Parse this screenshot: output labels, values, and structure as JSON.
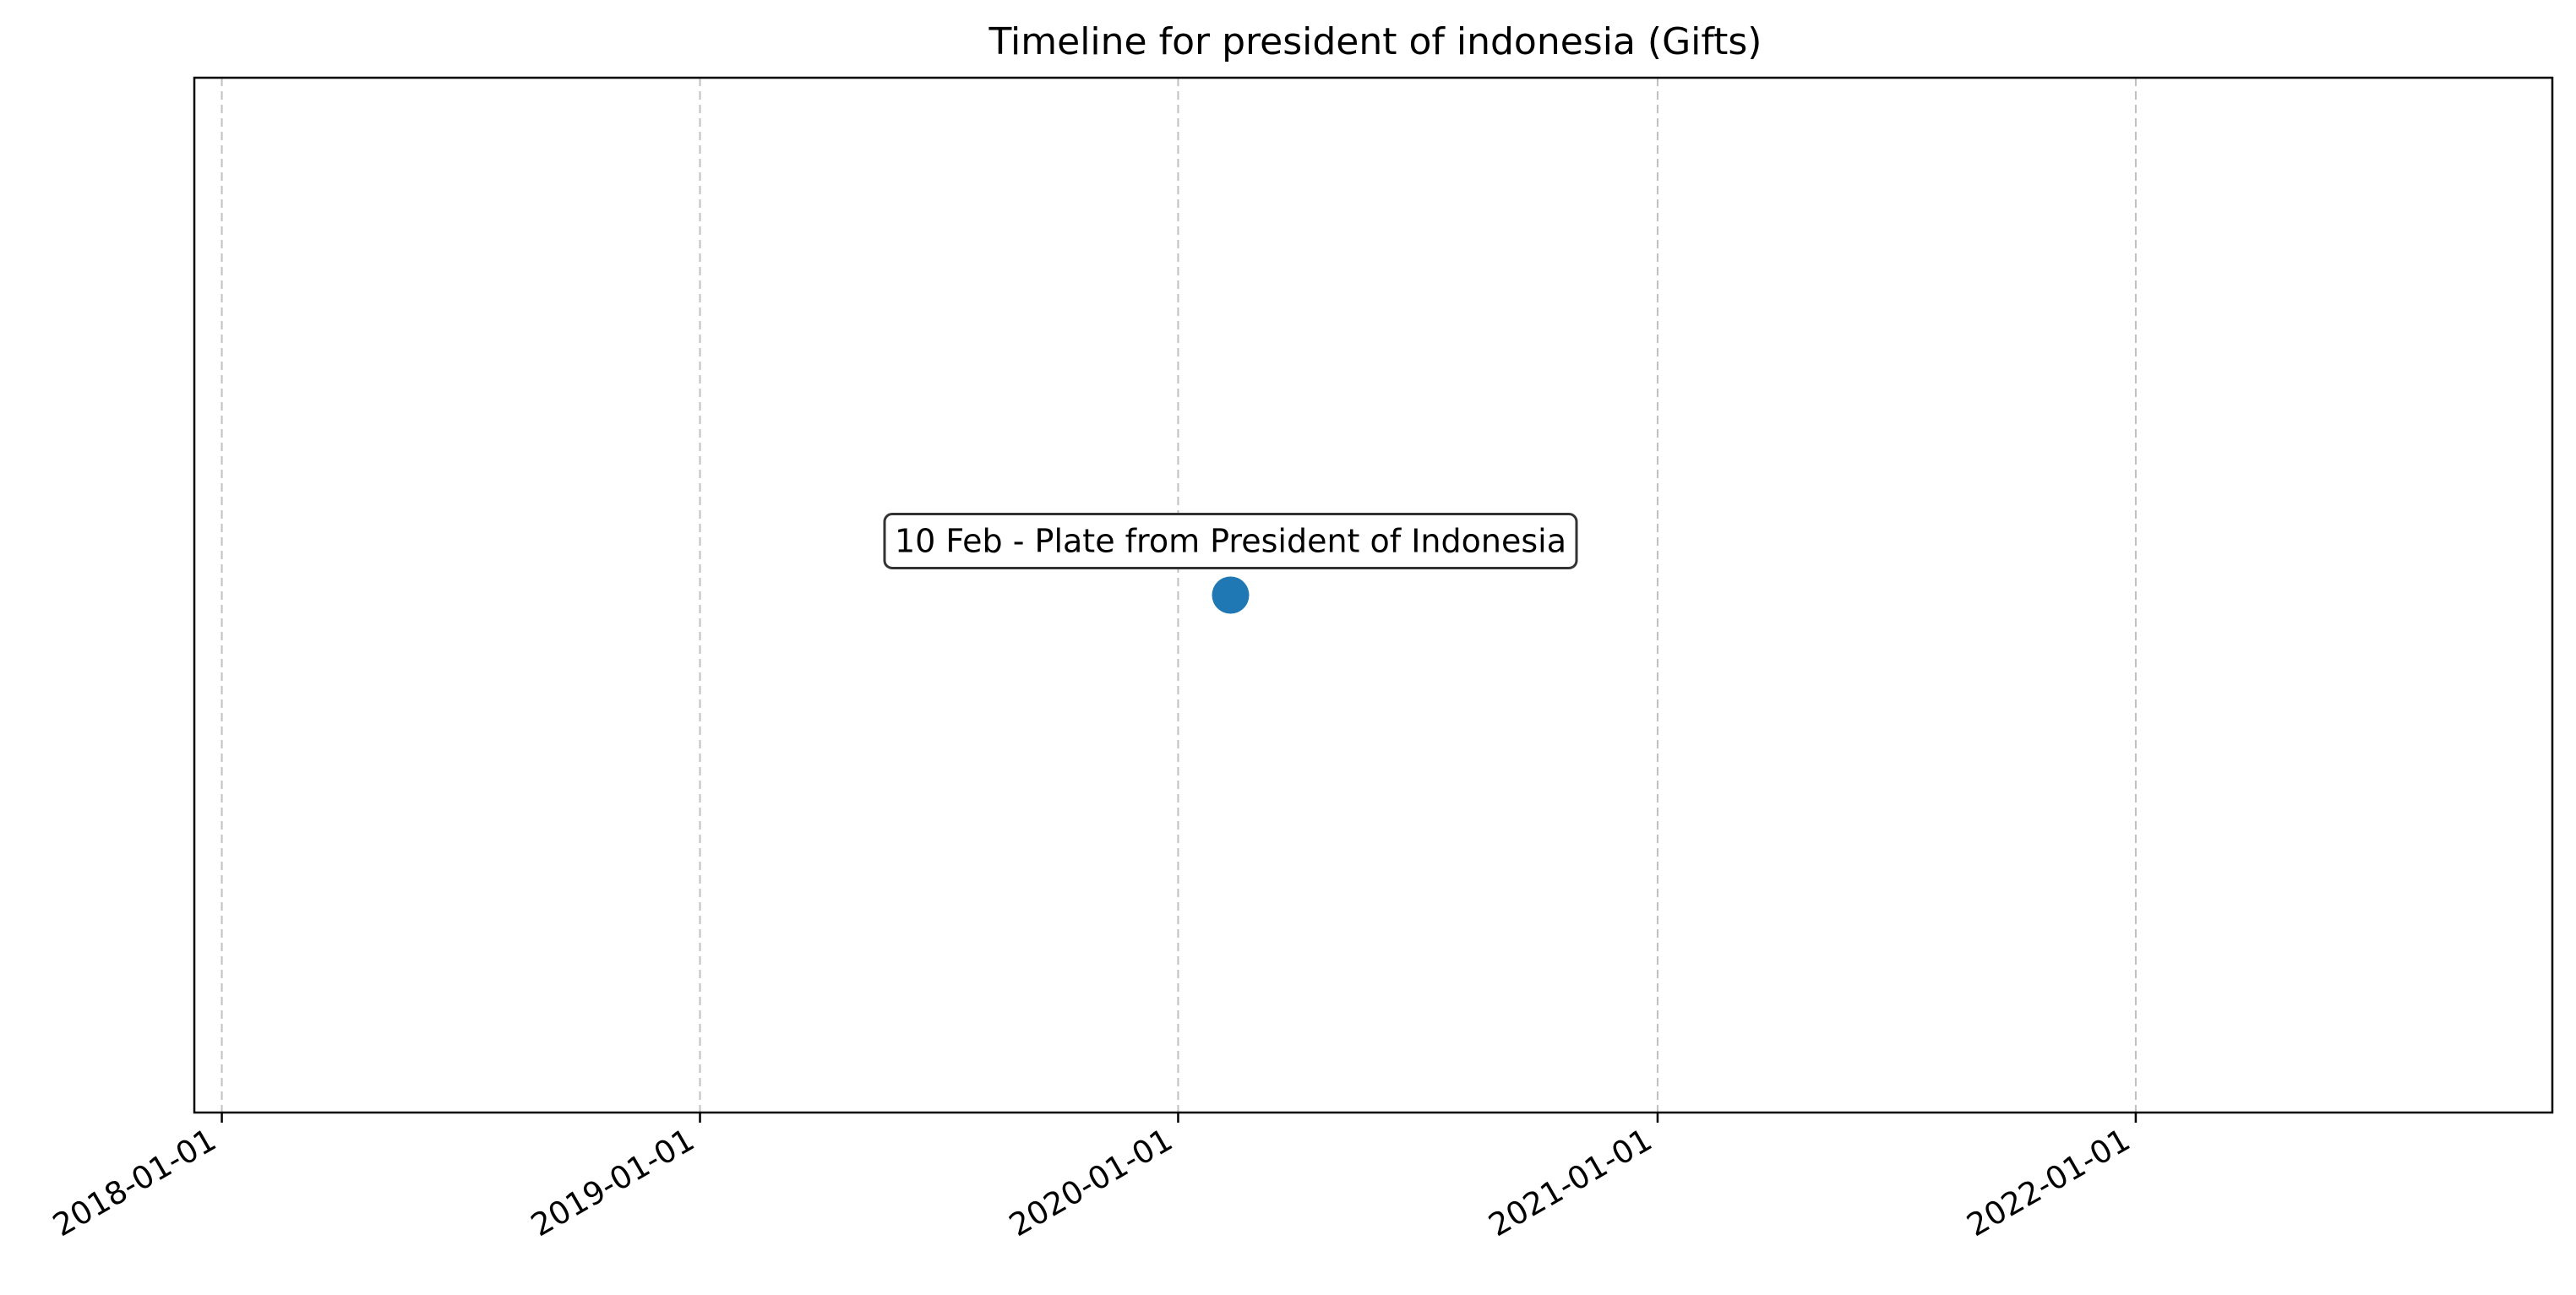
{
  "chart_data": {
    "type": "scatter",
    "title": "Timeline for president of indonesia (Gifts)",
    "xlabel": "",
    "ylabel": "",
    "x_axis": "date",
    "xlim": [
      "2017-12-11",
      "2022-11-15"
    ],
    "ylim": [
      -1,
      1
    ],
    "x_ticks": [
      "2018-01-01",
      "2019-01-01",
      "2020-01-01",
      "2021-01-01",
      "2022-01-01"
    ],
    "grid": "vertical dashed",
    "y_ticks_visible": false,
    "points": [
      {
        "date": "2020-02-10",
        "y": 0,
        "label": "10 Feb - Plate from President of Indonesia"
      }
    ],
    "colors": {
      "marker": "#1f77b4",
      "grid": "#c0c0c0",
      "axes": "#000000",
      "annotation_border": "#333333"
    }
  }
}
